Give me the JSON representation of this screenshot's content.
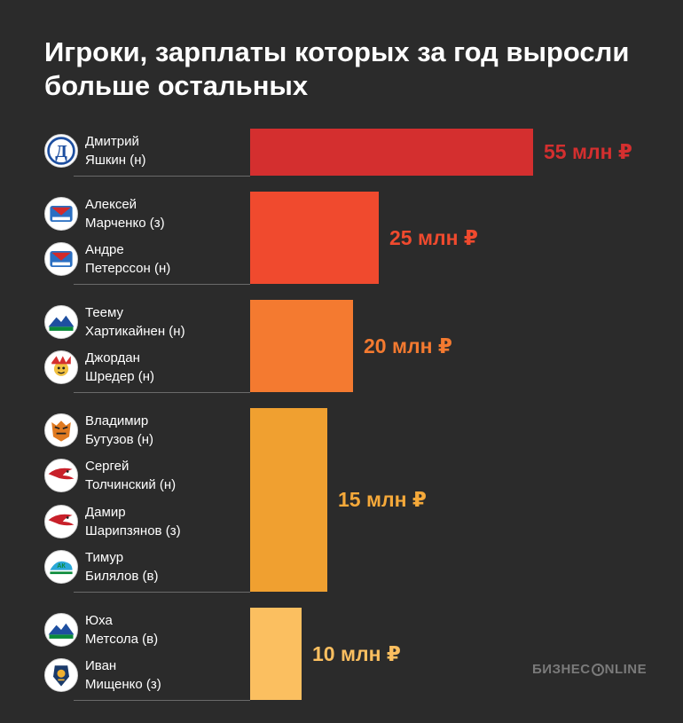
{
  "title": "Игроки, зарплаты которых за год выросли больше остальных",
  "brand": {
    "left": "БИЗНЕС",
    "right": "NLINE"
  },
  "chart_data": {
    "type": "bar",
    "orientation": "horizontal",
    "title": "Игроки, зарплаты которых за год выросли больше остальных",
    "xlabel": "",
    "ylabel": "",
    "unit": "млн ₽",
    "groups": [
      {
        "value": 55,
        "label": "55 млн ₽",
        "color": "#d42f2f",
        "text_color": "#d42f2f",
        "players": [
          {
            "line1": "Дмитрий",
            "line2": "Яшкин (н)",
            "logo": "dynamo-logo-icon"
          }
        ]
      },
      {
        "value": 25,
        "label": "25 млн ₽",
        "color": "#f04a2e",
        "text_color": "#f04a2e",
        "players": [
          {
            "line1": "Алексей",
            "line2": "Марченко (з)",
            "logo": "lokomotiv-logo-icon"
          },
          {
            "line1": "Андре",
            "line2": "Петерссон (н)",
            "logo": "lokomotiv-logo-icon"
          }
        ]
      },
      {
        "value": 20,
        "label": "20 млн ₽",
        "color": "#f47a30",
        "text_color": "#f47a30",
        "players": [
          {
            "line1": "Теему",
            "line2": "Хартикайнен (н)",
            "logo": "salavat-logo-icon"
          },
          {
            "line1": "Джордан",
            "line2": "Шредер (н)",
            "logo": "jokerit-logo-icon"
          }
        ]
      },
      {
        "value": 15,
        "label": "15 млн ₽",
        "color": "#f0a030",
        "text_color": "#f5a93a",
        "players": [
          {
            "line1": "Владимир",
            "line2": "Бутузов (н)",
            "logo": "amur-logo-icon"
          },
          {
            "line1": "Сергей",
            "line2": "Толчинский (н)",
            "logo": "avangard-logo-icon"
          },
          {
            "line1": "Дамир",
            "line2": "Шарипзянов (з)",
            "logo": "avangard-logo-icon"
          },
          {
            "line1": "Тимур",
            "line2": "Билялов (в)",
            "logo": "akbars-logo-icon"
          }
        ]
      },
      {
        "value": 10,
        "label": "10 млн ₽",
        "color": "#fbbf60",
        "text_color": "#fbbf60",
        "players": [
          {
            "line1": "Юха",
            "line2": "Метсола (в)",
            "logo": "salavat-logo-icon"
          },
          {
            "line1": "Иван",
            "line2": "Мищенко (з)",
            "logo": "sibir-logo-icon"
          }
        ]
      }
    ]
  }
}
